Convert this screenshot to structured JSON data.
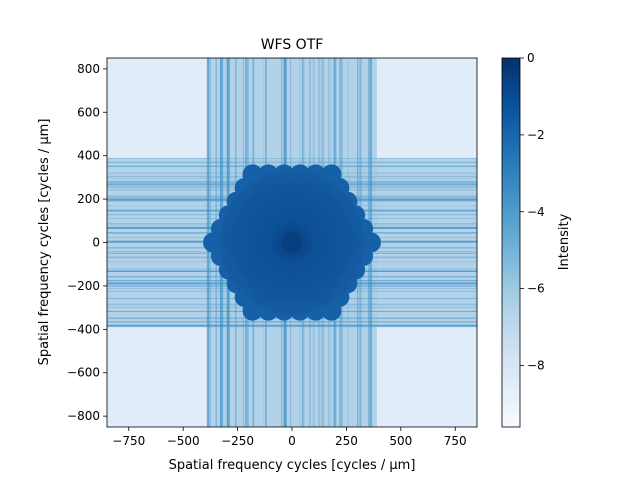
{
  "chart_data": {
    "type": "heatmap",
    "title": "WFS OTF",
    "xlabel": "Spatial frequency cycles [cycles / μm]",
    "ylabel": "Spatial frequency cycles [cycles / μm]",
    "xlim": [
      -850,
      850
    ],
    "ylim": [
      -850,
      850
    ],
    "xticks": [
      -750,
      -500,
      -250,
      0,
      250,
      500,
      750
    ],
    "yticks": [
      -800,
      -600,
      -400,
      -200,
      0,
      200,
      400,
      600,
      800
    ],
    "xtick_labels": [
      "−750",
      "−500",
      "−250",
      "0",
      "250",
      "500",
      "750"
    ],
    "ytick_labels": [
      "−800",
      "−600",
      "−400",
      "−200",
      "0",
      "200",
      "400",
      "600",
      "800"
    ],
    "colormap": "Blues",
    "colorbar": {
      "label": "Intensity",
      "range": [
        -9.6,
        0
      ],
      "ticks": [
        0,
        -2,
        -4,
        -6,
        -8
      ],
      "tick_labels": [
        "0",
        "−2",
        "−4",
        "−6",
        "−8"
      ]
    },
    "regions": {
      "central_hexagon": {
        "radius": 390,
        "value": -1.5,
        "center_value": -0.5
      },
      "cross_band": {
        "half_width": 390,
        "value": -6.3
      },
      "background": {
        "value": -8.5
      }
    }
  }
}
